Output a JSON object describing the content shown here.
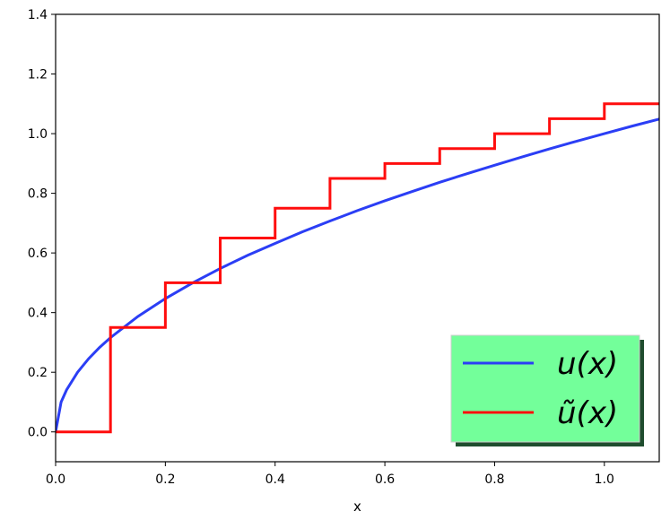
{
  "chart_data": {
    "type": "line",
    "title": "",
    "xlabel": "x",
    "ylabel": "",
    "xlim": [
      0.0,
      1.1
    ],
    "ylim": [
      -0.1,
      1.4
    ],
    "xticks": [
      0.0,
      0.2,
      0.4,
      0.6,
      0.8,
      1.0
    ],
    "yticks": [
      0.0,
      0.2,
      0.4,
      0.6,
      0.8,
      1.0,
      1.2,
      1.4
    ],
    "xtick_labels": [
      "0.0",
      "0.2",
      "0.4",
      "0.6",
      "0.8",
      "1.0"
    ],
    "ytick_labels": [
      "0.0",
      "0.2",
      "0.4",
      "0.6",
      "0.8",
      "1.0",
      "1.2",
      "1.4"
    ],
    "grid": false,
    "legend_position": "bottom-right",
    "legend_background": "#73ff9a",
    "series": [
      {
        "name": "u(x)",
        "legend_label": "u(x)",
        "color": "#2b3ef5",
        "style": "smooth",
        "x": [
          0.0,
          0.01,
          0.02,
          0.04,
          0.06,
          0.08,
          0.1,
          0.15,
          0.2,
          0.25,
          0.3,
          0.35,
          0.4,
          0.45,
          0.5,
          0.55,
          0.6,
          0.65,
          0.7,
          0.75,
          0.8,
          0.85,
          0.9,
          0.95,
          1.0,
          1.05,
          1.1
        ],
        "y": [
          0.0,
          0.1,
          0.141,
          0.2,
          0.245,
          0.283,
          0.316,
          0.387,
          0.447,
          0.5,
          0.548,
          0.592,
          0.632,
          0.671,
          0.707,
          0.742,
          0.775,
          0.806,
          0.837,
          0.866,
          0.894,
          0.922,
          0.949,
          0.975,
          1.0,
          1.025,
          1.049
        ]
      },
      {
        "name": "ũ(x)",
        "legend_label": "ũ(x)",
        "color": "#ff0d0d",
        "style": "step-post",
        "x": [
          0.0,
          0.1,
          0.2,
          0.3,
          0.4,
          0.5,
          0.6,
          0.7,
          0.8,
          0.9,
          1.0,
          1.1
        ],
        "y": [
          0.0,
          0.35,
          0.5,
          0.65,
          0.75,
          0.85,
          0.9,
          0.95,
          1.0,
          1.05,
          1.1,
          1.1
        ]
      }
    ]
  }
}
